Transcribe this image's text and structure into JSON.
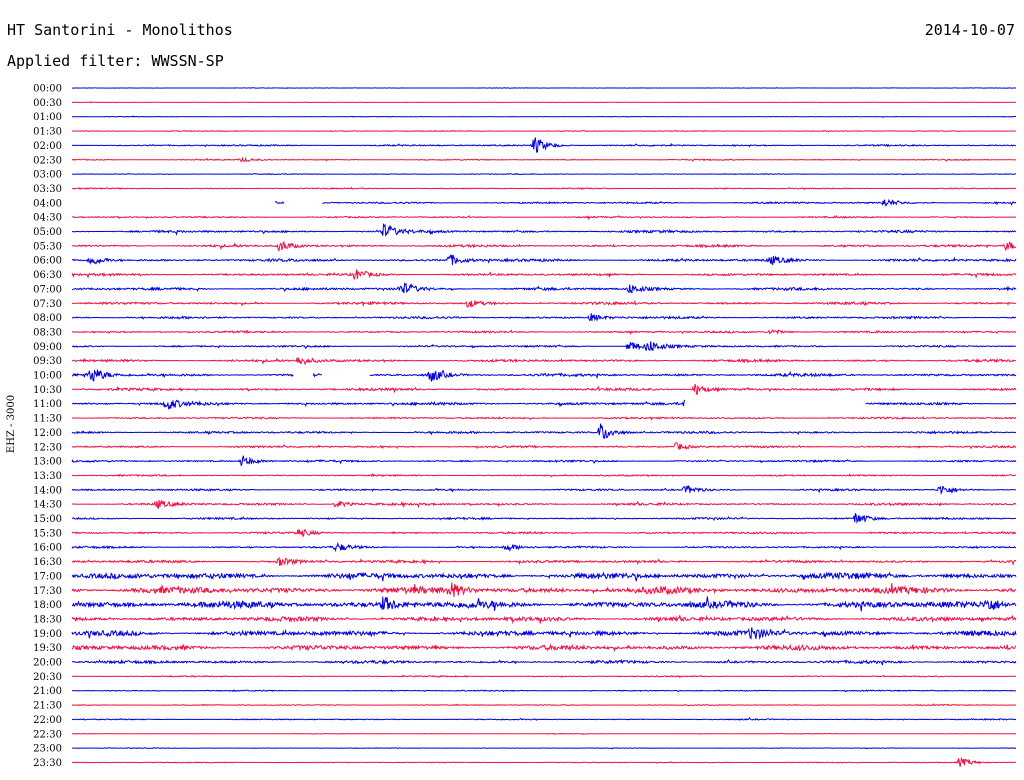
{
  "header": {
    "station": "HT Santorini - Monolithos",
    "date": "2014-10-07",
    "filter": "Applied filter: WWSSN-SP"
  },
  "chart_data": {
    "type": "line",
    "title": "HT Santorini - Monolithos",
    "subtitle": "Applied filter: WWSSN-SP",
    "date": "2014-10-07",
    "ylabel": "EHZ - 3000",
    "xlabel": "",
    "grid": false,
    "legend": "none",
    "trace_colors": [
      "#0000dd",
      "#ee1144"
    ],
    "tick_labels": [
      "00:00",
      "00:30",
      "01:00",
      "01:30",
      "02:00",
      "02:30",
      "03:00",
      "03:30",
      "04:00",
      "04:30",
      "05:00",
      "05:30",
      "06:00",
      "06:30",
      "07:00",
      "07:30",
      "08:00",
      "08:30",
      "09:00",
      "09:30",
      "10:00",
      "10:30",
      "11:00",
      "11:30",
      "12:00",
      "12:30",
      "13:00",
      "13:30",
      "14:00",
      "14:30",
      "15:00",
      "15:30",
      "16:00",
      "16:30",
      "17:00",
      "17:30",
      "18:00",
      "18:30",
      "19:00",
      "19:30",
      "20:00",
      "20:30",
      "21:00",
      "21:30",
      "22:00",
      "22:30",
      "23:00",
      "23:30"
    ],
    "noise_levels": [
      0.2,
      0.2,
      0.3,
      0.4,
      0.8,
      0.6,
      0.4,
      0.6,
      0.9,
      0.8,
      1.3,
      1.2,
      1.4,
      1.2,
      1.4,
      1.3,
      1.2,
      1.0,
      1.0,
      1.3,
      1.5,
      1.3,
      1.5,
      1.0,
      1.2,
      1.0,
      1.0,
      0.8,
      1.0,
      1.2,
      1.0,
      1.1,
      1.0,
      1.4,
      3.2,
      3.6,
      3.8,
      2.4,
      2.8,
      2.6,
      1.6,
      0.6,
      0.6,
      0.5,
      0.6,
      0.3,
      0.3,
      0.4
    ],
    "events": [
      {
        "row": 4,
        "pos": 0.49,
        "amp": 9
      },
      {
        "row": 5,
        "pos": 0.18,
        "amp": 2
      },
      {
        "row": 8,
        "pos": 0.86,
        "amp": 4
      },
      {
        "row": 10,
        "pos": 0.33,
        "amp": 7
      },
      {
        "row": 11,
        "pos": 0.22,
        "amp": 6
      },
      {
        "row": 11,
        "pos": 0.99,
        "amp": 5
      },
      {
        "row": 12,
        "pos": 0.02,
        "amp": 5
      },
      {
        "row": 12,
        "pos": 0.4,
        "amp": 6
      },
      {
        "row": 12,
        "pos": 0.74,
        "amp": 4
      },
      {
        "row": 13,
        "pos": 0.3,
        "amp": 5
      },
      {
        "row": 14,
        "pos": 0.35,
        "amp": 6
      },
      {
        "row": 14,
        "pos": 0.59,
        "amp": 5
      },
      {
        "row": 15,
        "pos": 0.42,
        "amp": 4
      },
      {
        "row": 16,
        "pos": 0.55,
        "amp": 4
      },
      {
        "row": 17,
        "pos": 0.74,
        "amp": 3
      },
      {
        "row": 18,
        "pos": 0.59,
        "amp": 6
      },
      {
        "row": 18,
        "pos": 0.61,
        "amp": 6
      },
      {
        "row": 19,
        "pos": 0.24,
        "amp": 5
      },
      {
        "row": 20,
        "pos": 0.02,
        "amp": 8
      },
      {
        "row": 20,
        "pos": 0.38,
        "amp": 7
      },
      {
        "row": 21,
        "pos": 0.66,
        "amp": 6
      },
      {
        "row": 22,
        "pos": 0.1,
        "amp": 6
      },
      {
        "row": 22,
        "pos": 0.65,
        "amp": 5
      },
      {
        "row": 24,
        "pos": 0.56,
        "amp": 10
      },
      {
        "row": 25,
        "pos": 0.64,
        "amp": 4
      },
      {
        "row": 26,
        "pos": 0.18,
        "amp": 6
      },
      {
        "row": 28,
        "pos": 0.65,
        "amp": 4
      },
      {
        "row": 28,
        "pos": 0.92,
        "amp": 5
      },
      {
        "row": 29,
        "pos": 0.09,
        "amp": 4
      },
      {
        "row": 29,
        "pos": 0.28,
        "amp": 4
      },
      {
        "row": 30,
        "pos": 0.83,
        "amp": 6
      },
      {
        "row": 31,
        "pos": 0.24,
        "amp": 4
      },
      {
        "row": 32,
        "pos": 0.28,
        "amp": 4
      },
      {
        "row": 32,
        "pos": 0.46,
        "amp": 4
      },
      {
        "row": 33,
        "pos": 0.22,
        "amp": 4
      },
      {
        "row": 35,
        "pos": 0.4,
        "amp": 7
      },
      {
        "row": 36,
        "pos": 0.33,
        "amp": 8
      },
      {
        "row": 36,
        "pos": 0.97,
        "amp": 6
      },
      {
        "row": 38,
        "pos": 0.72,
        "amp": 5
      },
      {
        "row": 47,
        "pos": 0.94,
        "amp": 5
      }
    ],
    "gaps": [
      {
        "row": 8,
        "start": 0.0,
        "end": 0.215
      },
      {
        "row": 8,
        "start": 0.225,
        "end": 0.265
      },
      {
        "row": 20,
        "start": 0.235,
        "end": 0.255
      },
      {
        "row": 20,
        "start": 0.265,
        "end": 0.315
      },
      {
        "row": 22,
        "start": 0.65,
        "end": 0.84
      }
    ]
  }
}
